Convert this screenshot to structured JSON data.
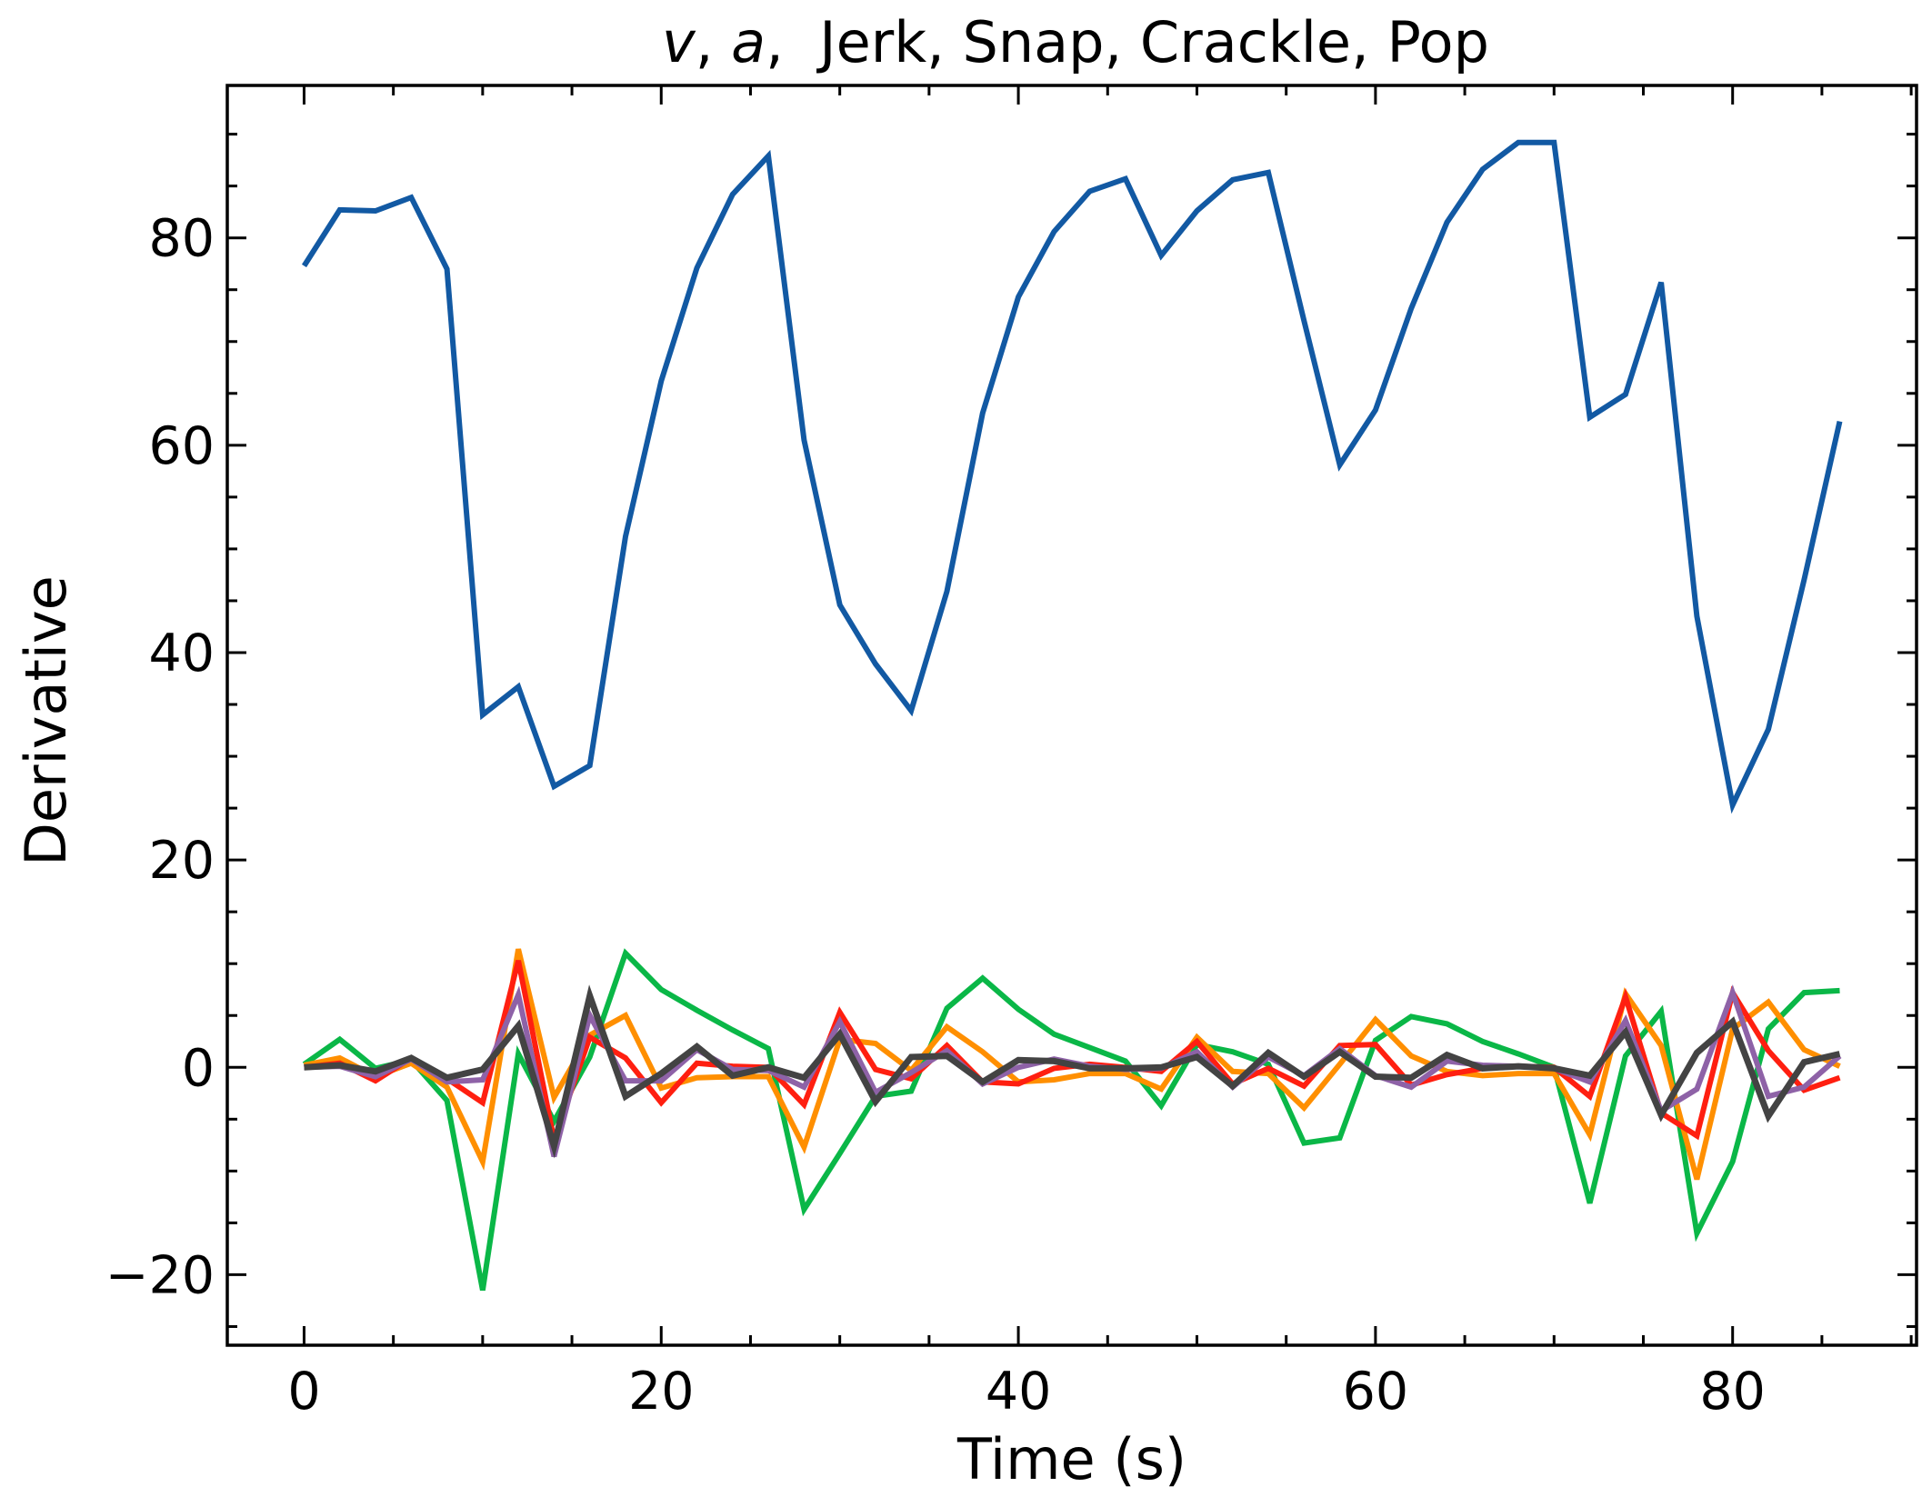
{
  "chart_data": {
    "type": "line",
    "title": "v, a,  Jerk, Snap, Crackle, Pop",
    "title_parts": {
      "v": "v",
      "sep1": ", ",
      "a": "a",
      "sep2": ",  ",
      "rest": "Jerk, Snap, Crackle, Pop"
    },
    "xlabel": "Time (s)",
    "ylabel": "Derivative",
    "xlim": [
      -4.3,
      90.3
    ],
    "ylim": [
      -26.8,
      94.7
    ],
    "xticks": [
      0,
      20,
      40,
      60,
      80
    ],
    "xtick_labels": [
      "0",
      "20",
      "40",
      "60",
      "80"
    ],
    "yticks": [
      -20,
      0,
      20,
      40,
      60,
      80
    ],
    "ytick_labels": [
      "−20",
      "0",
      "20",
      "40",
      "60",
      "80"
    ],
    "x_minor_step": 5,
    "y_minor_step": 5,
    "grid": false,
    "legend": "none",
    "x": [
      0,
      2,
      4,
      6,
      8,
      10,
      12,
      14,
      16,
      18,
      20,
      22,
      24,
      26,
      28,
      30,
      32,
      34,
      36,
      38,
      40,
      42,
      44,
      46,
      48,
      50,
      52,
      54,
      56,
      58,
      60,
      62,
      64,
      66,
      68,
      70,
      72,
      74,
      76,
      78,
      80,
      82,
      84,
      86
    ],
    "series": [
      {
        "color": "#1259a3",
        "values": [
          77.3,
          82.7,
          82.6,
          83.9,
          77.0,
          34.0,
          36.7,
          27.1,
          29.1,
          51.2,
          66.2,
          77.1,
          84.2,
          87.9,
          60.5,
          44.6,
          38.9,
          34.4,
          45.9,
          63.1,
          74.3,
          80.6,
          84.5,
          85.7,
          78.3,
          82.6,
          85.6,
          86.3,
          72.0,
          58.1,
          63.4,
          73.2,
          81.5,
          86.6,
          89.2,
          89.2,
          62.7,
          64.9,
          75.7,
          43.5,
          25.3,
          32.6,
          47.0,
          62.3
        ]
      },
      {
        "color": "#0ab747",
        "values": [
          0.3,
          2.7,
          -0.1,
          0.7,
          -3.2,
          -21.5,
          1.3,
          -5.2,
          1.0,
          11.0,
          7.5,
          5.5,
          3.6,
          1.8,
          -13.7,
          -8.3,
          -2.8,
          -2.3,
          5.7,
          8.6,
          5.6,
          3.2,
          1.9,
          0.6,
          -3.7,
          2.2,
          1.5,
          0.3,
          -7.3,
          -6.8,
          2.6,
          4.9,
          4.2,
          2.5,
          1.3,
          0.0,
          -13.1,
          1.1,
          5.4,
          -16.0,
          -9.1,
          3.7,
          7.2,
          7.4
        ]
      },
      {
        "color": "#ff8f00",
        "values": [
          0.2,
          0.9,
          -0.9,
          0.4,
          -1.9,
          -9.1,
          11.4,
          -2.9,
          3.1,
          5.0,
          -2.0,
          -1.0,
          -0.9,
          -0.9,
          -7.7,
          2.7,
          2.3,
          -0.3,
          3.9,
          1.5,
          -1.4,
          -1.2,
          -0.6,
          -0.6,
          -2.1,
          2.9,
          -0.4,
          -0.6,
          -3.9,
          0.3,
          4.6,
          1.1,
          -0.4,
          -0.8,
          -0.6,
          -0.6,
          -6.5,
          7.1,
          2.1,
          -10.8,
          3.7,
          6.3,
          1.7,
          0.1
        ]
      },
      {
        "color": "#ff1f10",
        "values": [
          0.0,
          0.4,
          -1.3,
          0.9,
          -1.1,
          -3.4,
          10.3,
          -7.0,
          2.9,
          0.9,
          -3.4,
          0.4,
          0.1,
          0.0,
          -3.6,
          5.3,
          -0.2,
          -1.1,
          2.1,
          -1.4,
          -1.6,
          -0.1,
          0.3,
          0.0,
          -0.4,
          2.5,
          -1.6,
          -0.1,
          -1.8,
          2.1,
          2.2,
          -1.7,
          -0.7,
          -0.1,
          0.1,
          0.0,
          -2.8,
          6.8,
          -4.4,
          -6.6,
          7.2,
          1.6,
          -2.2,
          -1.0
        ]
      },
      {
        "color": "#8e62a7",
        "values": [
          0.0,
          0.1,
          -0.9,
          0.8,
          -1.4,
          -1.2,
          7.0,
          -8.6,
          5.0,
          -1.3,
          -1.3,
          1.7,
          -0.2,
          -0.3,
          -1.9,
          4.4,
          -2.4,
          -0.5,
          1.6,
          -1.6,
          0.0,
          0.8,
          0.1,
          -0.2,
          -0.1,
          1.5,
          -1.9,
          1.0,
          -0.8,
          1.8,
          -0.8,
          -1.9,
          0.6,
          0.2,
          0.1,
          -0.1,
          -1.4,
          4.5,
          -4.2,
          -2.1,
          7.2,
          -2.8,
          -1.9,
          1.1
        ]
      },
      {
        "color": "#434343",
        "values": [
          0.0,
          0.2,
          -0.4,
          0.9,
          -1.0,
          -0.2,
          4.0,
          -7.6,
          6.9,
          -2.8,
          -0.6,
          2.0,
          -0.8,
          0.0,
          -1.0,
          3.2,
          -3.3,
          1.0,
          1.1,
          -1.4,
          0.7,
          0.6,
          -0.1,
          -0.1,
          0.0,
          1.0,
          -1.8,
          1.4,
          -0.9,
          1.5,
          -0.9,
          -1.0,
          1.2,
          -0.1,
          0.1,
          -0.1,
          -0.8,
          3.4,
          -4.6,
          1.4,
          4.4,
          -4.7,
          0.5,
          1.3
        ]
      }
    ]
  }
}
